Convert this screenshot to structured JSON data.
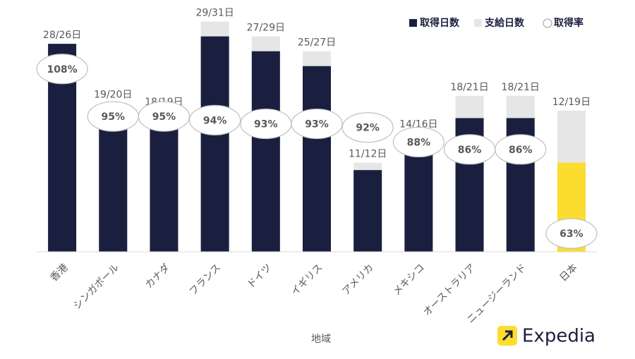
{
  "chart_data": {
    "type": "bar",
    "categories": [
      "香港",
      "シンガポール",
      "カナダ",
      "フランス",
      "ドイツ",
      "イギリス",
      "アメリカ",
      "メキシコ",
      "オーストラリア",
      "ニュージーランド",
      "日本"
    ],
    "series": [
      {
        "name": "取得日数",
        "color": "#1b1f3f",
        "colors": [
          "#1b1f3f",
          "#1b1f3f",
          "#1b1f3f",
          "#1b1f3f",
          "#1b1f3f",
          "#1b1f3f",
          "#1b1f3f",
          "#1b1f3f",
          "#1b1f3f",
          "#1b1f3f",
          "#fcdc2f"
        ],
        "values": [
          28,
          19,
          18,
          29,
          27,
          25,
          11,
          14,
          18,
          18,
          12
        ]
      },
      {
        "name": "支給日数",
        "color": "#e6e6e6",
        "values": [
          26,
          20,
          19,
          31,
          29,
          27,
          12,
          16,
          21,
          21,
          19
        ]
      },
      {
        "name": "取得率",
        "color": "#ffffff",
        "axis": "y2",
        "values": [
          108,
          95,
          95,
          94,
          93,
          93,
          92,
          88,
          86,
          86,
          63
        ],
        "value_labels": [
          "108%",
          "95%",
          "95%",
          "94%",
          "93%",
          "93%",
          "92%",
          "88%",
          "86%",
          "86%",
          "63%"
        ]
      }
    ],
    "bar_labels": [
      "28/26日",
      "19/20日",
      "18/19日",
      "29/31日",
      "27/29日",
      "25/27日",
      "11/12日",
      "14/16日",
      "18/21日",
      "18/21日",
      "12/19日"
    ],
    "xlabel": "地域",
    "ylim": [
      0,
      32
    ],
    "y2lim": [
      58,
      123
    ],
    "legend": "top-right",
    "logo": "Expedia"
  }
}
